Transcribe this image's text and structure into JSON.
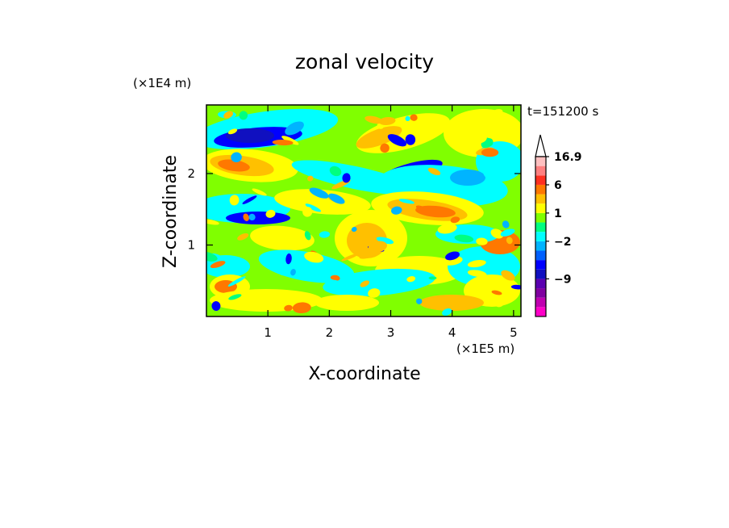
{
  "chart_data": {
    "type": "heatmap",
    "title": "zonal velocity",
    "xlabel": "X-coordinate",
    "ylabel": "Z-coordinate",
    "x_unit": "(×1E5 m)",
    "y_unit": "(×1E4 m)",
    "time_label": "t=151200 s",
    "xlim": [
      0,
      5.12
    ],
    "ylim": [
      0,
      2.96
    ],
    "x_ticks": [
      {
        "value": 1,
        "label": "1"
      },
      {
        "value": 2,
        "label": "2"
      },
      {
        "value": 3,
        "label": "3"
      },
      {
        "value": 4,
        "label": "4"
      },
      {
        "value": 5,
        "label": "5"
      }
    ],
    "y_ticks": [
      {
        "value": 1,
        "label": "1"
      },
      {
        "value": 2,
        "label": "2"
      }
    ],
    "colorbar": {
      "max_label": "16.9",
      "extend_max": true,
      "levels": [
        -16,
        -13,
        -11,
        -9,
        -7,
        -5,
        -3,
        -2,
        -1,
        0,
        1,
        2,
        3,
        6,
        8,
        12,
        16.9
      ],
      "colors": [
        "#ff00c8",
        "#c000b0",
        "#8000a0",
        "#5a00b0",
        "#1010c0",
        "#0000ff",
        "#0060ff",
        "#00b4ff",
        "#00ffff",
        "#00ff80",
        "#80ff00",
        "#ffff00",
        "#ffc000",
        "#ff7800",
        "#ff3020",
        "#ff8080",
        "#ffc0c0"
      ],
      "labels": [
        {
          "value": 16.9,
          "label": "16.9"
        },
        {
          "value": 6,
          "label": "6"
        },
        {
          "value": 1,
          "label": "1"
        },
        {
          "value": -2,
          "label": "−2"
        },
        {
          "value": -9,
          "label": "−9"
        }
      ]
    }
  }
}
